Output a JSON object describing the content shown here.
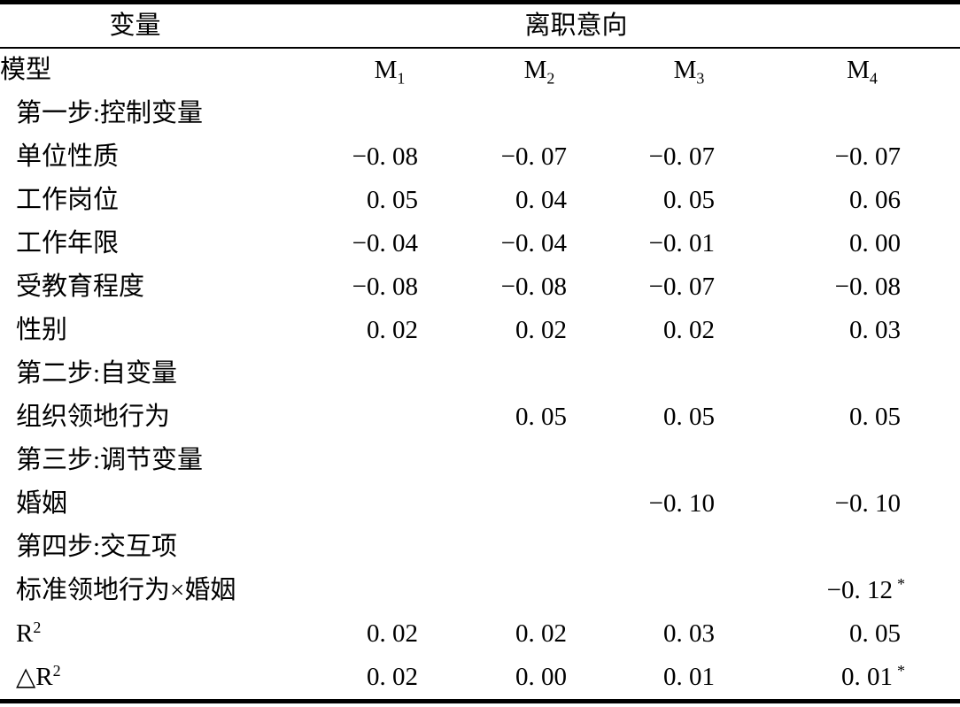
{
  "table": {
    "header": {
      "variable_label": "变量",
      "dependent_label": "离职意向",
      "model_row_label": "模型",
      "models": [
        {
          "base": "M",
          "sub": "1"
        },
        {
          "base": "M",
          "sub": "2"
        },
        {
          "base": "M",
          "sub": "3"
        },
        {
          "base": "M",
          "sub": "4"
        }
      ]
    },
    "rows": [
      {
        "label": "第一步:控制变量",
        "cells": [
          {},
          {},
          {},
          {}
        ]
      },
      {
        "label": "单位性质",
        "cells": [
          {
            "text": "−0. 08"
          },
          {
            "text": "−0. 07"
          },
          {
            "text": "−0. 07"
          },
          {
            "text": "−0. 07"
          }
        ]
      },
      {
        "label": "工作岗位",
        "cells": [
          {
            "text": "0. 05"
          },
          {
            "text": "0. 04"
          },
          {
            "text": "0. 05"
          },
          {
            "text": "0. 06"
          }
        ]
      },
      {
        "label": "工作年限",
        "cells": [
          {
            "text": "−0. 04"
          },
          {
            "text": "−0. 04"
          },
          {
            "text": "−0. 01"
          },
          {
            "text": "0. 00"
          }
        ]
      },
      {
        "label": "受教育程度",
        "cells": [
          {
            "text": "−0. 08"
          },
          {
            "text": "−0. 08"
          },
          {
            "text": "−0. 07"
          },
          {
            "text": "−0. 08"
          }
        ]
      },
      {
        "label": "性别",
        "cells": [
          {
            "text": "0. 02"
          },
          {
            "text": "0. 02"
          },
          {
            "text": "0. 02"
          },
          {
            "text": "0. 03"
          }
        ]
      },
      {
        "label": "第二步:自变量",
        "cells": [
          {},
          {},
          {},
          {}
        ]
      },
      {
        "label": "组织领地行为",
        "cells": [
          {},
          {
            "text": "0. 05"
          },
          {
            "text": "0. 05"
          },
          {
            "text": "0. 05"
          }
        ]
      },
      {
        "label": "第三步:调节变量",
        "cells": [
          {},
          {},
          {},
          {}
        ]
      },
      {
        "label": "婚姻",
        "cells": [
          {},
          {},
          {
            "text": "−0. 10"
          },
          {
            "text": "−0. 10"
          }
        ]
      },
      {
        "label": "第四步:交互项",
        "cells": [
          {},
          {},
          {},
          {}
        ]
      },
      {
        "label": "标准领地行为×婚姻",
        "cells": [
          {},
          {},
          {},
          {
            "text": "−0. 12",
            "mark": "*"
          }
        ]
      },
      {
        "label": "R",
        "label_sup": "2",
        "cells": [
          {
            "text": "0. 02"
          },
          {
            "text": "0. 02"
          },
          {
            "text": "0. 03"
          },
          {
            "text": "0. 05"
          }
        ]
      },
      {
        "label": "△R",
        "label_sup": "2",
        "cells": [
          {
            "text": "0. 02"
          },
          {
            "text": "0. 00"
          },
          {
            "text": "0. 01"
          },
          {
            "text": "0. 01",
            "mark": "*"
          }
        ]
      }
    ]
  }
}
